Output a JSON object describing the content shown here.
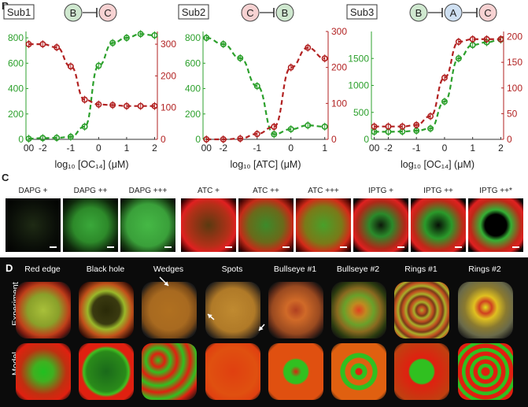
{
  "panel_b": {
    "letter": "B",
    "charts": [
      {
        "id": "sub1",
        "tag": "Sub1",
        "circuit": [
          "B",
          "C"
        ],
        "xlabel": "log₁₀ [OC₁₄] (μM)",
        "x_ticks": [
          "00",
          "-2",
          "-1",
          "0",
          "1",
          "2"
        ],
        "left_ticks": [
          "0",
          "200",
          "400",
          "600",
          "800"
        ],
        "right_ticks": [
          "0",
          "100",
          "200",
          "300"
        ]
      },
      {
        "id": "sub2",
        "tag": "Sub2",
        "circuit": [
          "C",
          "B"
        ],
        "xlabel": "log₁₀ [ATC] (μM)",
        "x_ticks": [
          "00",
          "-2",
          "-1",
          "0",
          "1"
        ],
        "left_ticks": [
          "0",
          "200",
          "400",
          "600",
          "800"
        ],
        "right_ticks": [
          "0",
          "100",
          "200",
          "300"
        ]
      },
      {
        "id": "sub3",
        "tag": "Sub3",
        "circuit": [
          "B",
          "A",
          "C"
        ],
        "xlabel": "log₁₀ [OC₁₄] (μM)",
        "x_ticks": [
          "00",
          "-2",
          "-1",
          "0",
          "1",
          "2"
        ],
        "left_ticks": [
          "0",
          "500",
          "1000",
          "1500"
        ],
        "right_ticks": [
          "0",
          "50",
          "100",
          "150",
          "200"
        ]
      }
    ]
  },
  "chart_data": [
    {
      "type": "line",
      "x": [
        "00",
        "-2",
        "-1.5",
        "-1",
        "-0.5",
        "0",
        "0.5",
        "1",
        "1.5",
        "2"
      ],
      "series": [
        {
          "axis": "left",
          "color": "#2ca02c",
          "values": [
            5,
            10,
            12,
            20,
            100,
            580,
            760,
            800,
            830,
            820
          ]
        },
        {
          "axis": "right",
          "color": "#b22222",
          "values": [
            300,
            300,
            290,
            230,
            125,
            110,
            108,
            105,
            105,
            105
          ]
        }
      ],
      "xlim": [
        -2.6,
        2.1
      ],
      "ylim_left": [
        0,
        850
      ],
      "ylim_right": [
        0,
        340
      ]
    },
    {
      "type": "line",
      "x": [
        "00",
        "-2",
        "-1.5",
        "-1",
        "-0.5",
        "0",
        "0.5",
        "1"
      ],
      "series": [
        {
          "axis": "left",
          "color": "#2ca02c",
          "values": [
            800,
            750,
            640,
            420,
            40,
            80,
            110,
            100
          ]
        },
        {
          "axis": "right",
          "color": "#b22222",
          "values": [
            0,
            0,
            2,
            15,
            35,
            200,
            255,
            225
          ]
        }
      ],
      "xlim": [
        -2.6,
        1.1
      ],
      "ylim_left": [
        0,
        850
      ],
      "ylim_right": [
        0,
        300
      ]
    },
    {
      "type": "line",
      "x": [
        "00",
        "-2",
        "-1.5",
        "-1",
        "-0.5",
        "0",
        "0.5",
        "1",
        "1.5",
        "2"
      ],
      "series": [
        {
          "axis": "left",
          "color": "#2ca02c",
          "values": [
            140,
            140,
            145,
            160,
            200,
            700,
            1500,
            1750,
            1800,
            1850
          ]
        },
        {
          "axis": "right",
          "color": "#b22222",
          "values": [
            25,
            25,
            25,
            28,
            45,
            120,
            190,
            195,
            195,
            195
          ]
        }
      ],
      "xlim": [
        -2.6,
        2.1
      ],
      "ylim_left": [
        0,
        2000
      ],
      "ylim_right": [
        0,
        210
      ]
    }
  ],
  "panel_c": {
    "letter": "C",
    "groups": [
      {
        "items": [
          {
            "label": "DAPG +"
          },
          {
            "label": "DAPG ++"
          },
          {
            "label": "DAPG +++"
          }
        ]
      },
      {
        "items": [
          {
            "label": "ATC +"
          },
          {
            "label": "ATC ++"
          },
          {
            "label": "ATC +++"
          }
        ]
      },
      {
        "items": [
          {
            "label": "IPTG +"
          },
          {
            "label": "IPTG ++"
          },
          {
            "label": "IPTG ++*"
          }
        ]
      }
    ]
  },
  "panel_d": {
    "letter": "D",
    "columns": [
      "Red edge",
      "Black hole",
      "Wedges",
      "Spots",
      "Bullseye #1",
      "Bullseye #2",
      "Rings #1",
      "Rings #2"
    ],
    "rows": [
      "Experiment",
      "Model"
    ]
  },
  "colors": {
    "green": "#2ca02c",
    "red": "#b22222",
    "circuit_b": "#cfe8cf",
    "circuit_c": "#f7d2d2",
    "circuit_a": "#cfe0f2"
  }
}
